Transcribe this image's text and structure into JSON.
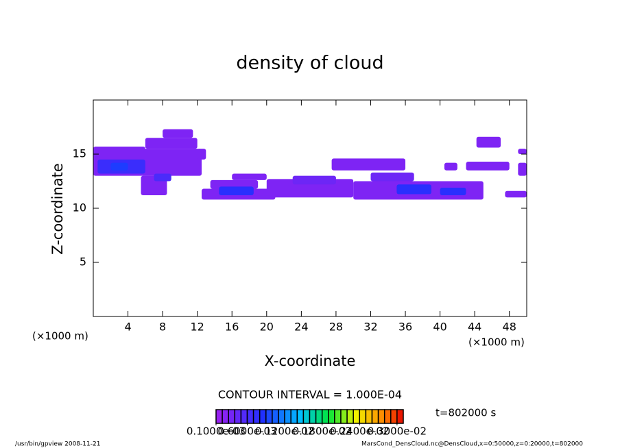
{
  "chart_data": {
    "type": "contour",
    "title": "density of cloud",
    "x_label": "X-coordinate",
    "y_label": "Z-coordinate",
    "x_unit": "(×1000 m)",
    "y_unit": "(×1000 m)",
    "contour_interval_text": "CONTOUR INTERVAL = 1.000E-04",
    "time_label": "t=802000 s",
    "footer_left": "/usr/bin/gpview  2008-11-21",
    "footer_right": "MarsCond_DensCloud.nc@DensCloud,x=0:50000,z=0:20000,t=802000",
    "xlim": [
      0,
      50
    ],
    "ylim": [
      0,
      20
    ],
    "xticks": [
      4,
      8,
      12,
      16,
      20,
      24,
      28,
      32,
      36,
      40,
      44,
      48
    ],
    "yticks": [
      5,
      10,
      15
    ],
    "clim": [
      0.0001,
      0.0031
    ],
    "cticks": [
      {
        "value": 0.0001,
        "label": "0.1000e-03"
      },
      {
        "value": 0.0006,
        "label": "0.6000e-03"
      },
      {
        "value": 0.0012,
        "label": "0.1200e-02"
      },
      {
        "value": 0.0018,
        "label": "0.1800e-02"
      },
      {
        "value": 0.0024,
        "label": "0.2400e-02"
      },
      {
        "value": 0.003,
        "label": "0.3000e-02"
      }
    ],
    "cells": [
      {
        "x": [
          0,
          12.5
        ],
        "z": [
          13,
          15.5
        ],
        "value": 0.0003
      },
      {
        "x": [
          0,
          6
        ],
        "z": [
          14.8,
          15.7
        ],
        "value": 0.0003
      },
      {
        "x": [
          6,
          12
        ],
        "z": [
          15.5,
          16.5
        ],
        "value": 0.0003
      },
      {
        "x": [
          8,
          11.5
        ],
        "z": [
          16.5,
          17.3
        ],
        "value": 0.0003
      },
      {
        "x": [
          12,
          13
        ],
        "z": [
          14.5,
          15.5
        ],
        "value": 0.0003
      },
      {
        "x": [
          0.5,
          6
        ],
        "z": [
          13.2,
          14.5
        ],
        "value": 0.0007
      },
      {
        "x": [
          2,
          4
        ],
        "z": [
          13.5,
          14.2
        ],
        "value": 0.0009
      },
      {
        "x": [
          5.5,
          8.5
        ],
        "z": [
          11.2,
          13
        ],
        "value": 0.0003
      },
      {
        "x": [
          7,
          9
        ],
        "z": [
          12.5,
          13.2
        ],
        "value": 0.0006
      },
      {
        "x": [
          12.5,
          21
        ],
        "z": [
          10.8,
          11.8
        ],
        "value": 0.0003
      },
      {
        "x": [
          13.5,
          19
        ],
        "z": [
          11.8,
          12.6
        ],
        "value": 0.0003
      },
      {
        "x": [
          14.5,
          18.5
        ],
        "z": [
          11.2,
          12
        ],
        "value": 0.0008
      },
      {
        "x": [
          16,
          20
        ],
        "z": [
          12.6,
          13.2
        ],
        "value": 0.0003
      },
      {
        "x": [
          20,
          30
        ],
        "z": [
          11,
          12.7
        ],
        "value": 0.0003
      },
      {
        "x": [
          23,
          28
        ],
        "z": [
          12.2,
          13
        ],
        "value": 0.0004
      },
      {
        "x": [
          30,
          45
        ],
        "z": [
          10.8,
          12.5
        ],
        "value": 0.0003
      },
      {
        "x": [
          32,
          37
        ],
        "z": [
          12.5,
          13.3
        ],
        "value": 0.0004
      },
      {
        "x": [
          35,
          39
        ],
        "z": [
          11.3,
          12.2
        ],
        "value": 0.0008
      },
      {
        "x": [
          40,
          43
        ],
        "z": [
          11.2,
          11.9
        ],
        "value": 0.0008
      },
      {
        "x": [
          27.5,
          36
        ],
        "z": [
          13.5,
          14.6
        ],
        "value": 0.0003
      },
      {
        "x": [
          44.2,
          47
        ],
        "z": [
          15.6,
          16.6
        ],
        "value": 0.0003
      },
      {
        "x": [
          43,
          48
        ],
        "z": [
          13.5,
          14.3
        ],
        "value": 0.0003
      },
      {
        "x": [
          40.5,
          42
        ],
        "z": [
          13.5,
          14.2
        ],
        "value": 0.0003
      },
      {
        "x": [
          49,
          50
        ],
        "z": [
          13,
          14.2
        ],
        "value": 0.0003
      },
      {
        "x": [
          49,
          50
        ],
        "z": [
          15,
          15.5
        ],
        "value": 0.0003
      },
      {
        "x": [
          47.5,
          50
        ],
        "z": [
          11,
          11.6
        ],
        "value": 0.0003
      }
    ]
  }
}
